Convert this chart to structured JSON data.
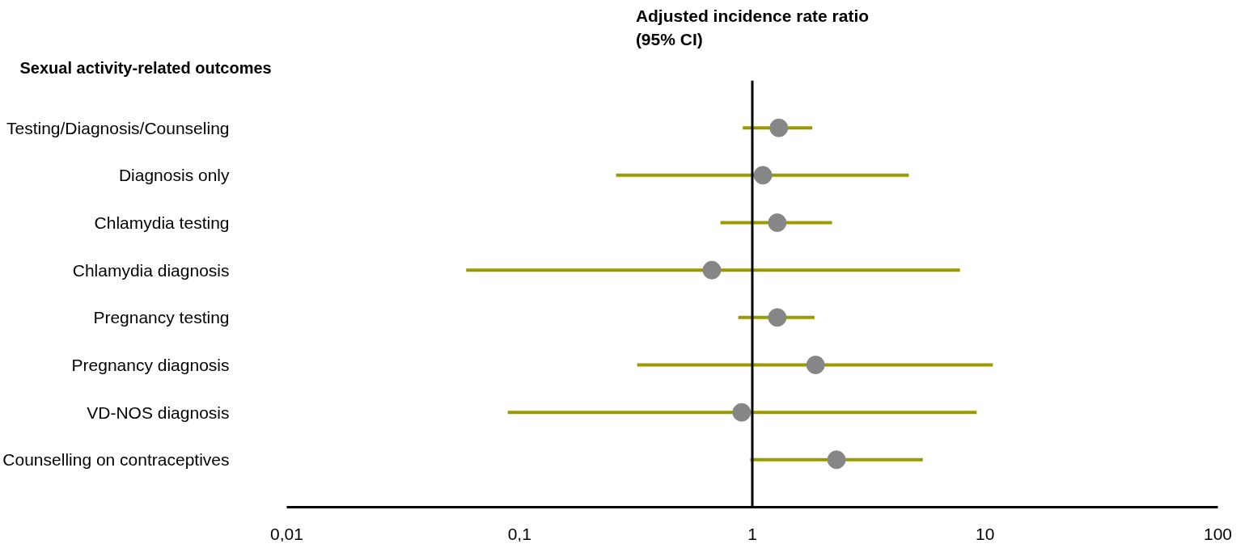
{
  "chart_data": {
    "type": "scatter",
    "orientation": "horizontal",
    "title": "Adjusted incidence rate ratio\n(95% CI)",
    "ylabel": "Sexual activity-related outcomes",
    "categories": [
      "Testing/Diagnosis/Counseling",
      "Diagnosis only",
      "Chlamydia testing",
      "Chlamydia diagnosis",
      "Pregnancy testing",
      "Pregnancy diagnosis",
      "VD-NOS diagnosis",
      "Counselling on contraceptives"
    ],
    "series": [
      {
        "color": "#868686",
        "values": [
          1.3,
          1.11,
          1.28,
          0.67,
          1.28,
          1.87,
          0.9,
          2.3
        ],
        "errors": [
          [
            0.91,
            1.81
          ],
          [
            0.26,
            4.7
          ],
          [
            0.73,
            2.2
          ],
          [
            0.059,
            7.8
          ],
          [
            0.87,
            1.85
          ],
          [
            0.32,
            10.8
          ],
          [
            0.089,
            9.2
          ],
          [
            0.98,
            5.4
          ]
        ]
      }
    ],
    "log": "x",
    "xlim": [
      0.01,
      100
    ],
    "xticks": [
      {
        "value": 0.01,
        "label": "0,01"
      },
      {
        "value": 0.1,
        "label": "0,1"
      },
      1,
      10,
      100
    ],
    "ref_lines": [
      {
        "axis": "x",
        "value": 1,
        "color": "#000000"
      }
    ],
    "marker": "circle",
    "grid": false
  }
}
